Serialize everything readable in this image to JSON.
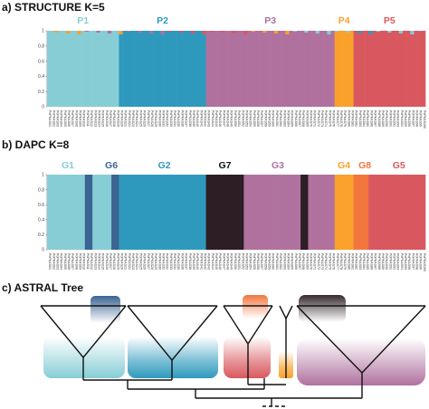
{
  "panels": {
    "a_title": "a) STRUCTURE K=5",
    "b_title": "b) DAPC K=8",
    "c_title": "c) ASTRAL Tree"
  },
  "colors": {
    "P1": "#86cdd5",
    "P2": "#2f99bd",
    "P3": "#b0719e",
    "P4": "#f9a12b",
    "P5": "#d9585f",
    "G1": "#86cdd5",
    "G6": "#3a6492",
    "G2": "#2f99bd",
    "G7": "#2c1e24",
    "G3": "#b0719e",
    "G4": "#f9a12b",
    "G8": "#f2763e",
    "G5": "#d9585f",
    "tree_line": "#111111",
    "tree_link": "#777777"
  },
  "chart_data": [
    {
      "type": "bar",
      "stacked": true,
      "title": "a) STRUCTURE K=5",
      "ylim": [
        0,
        1
      ],
      "yticks": [
        "0",
        "0.2",
        "0.4",
        "0.6",
        "0.8",
        "1"
      ],
      "clusters": [
        {
          "name": "P1",
          "color": "#86cdd5",
          "start": 0,
          "end": 19
        },
        {
          "name": "P2",
          "color": "#2f99bd",
          "start": 19,
          "end": 42
        },
        {
          "name": "P3",
          "color": "#b0719e",
          "start": 42,
          "end": 76
        },
        {
          "name": "P4",
          "color": "#f9a12b",
          "start": 76,
          "end": 81
        },
        {
          "name": "P5",
          "color": "#d9585f",
          "start": 81,
          "end": 100
        }
      ],
      "n_individuals": 100,
      "membership_note": "Each individual shows near-complete membership in its cluster with small admixture slivers at the top of some columns."
    },
    {
      "type": "bar",
      "stacked": true,
      "title": "b) DAPC K=8",
      "ylim": [
        0,
        1
      ],
      "yticks": [
        "0",
        "0.2",
        "0.4",
        "0.6",
        "0.8",
        "1"
      ],
      "segments": [
        {
          "group": "G1",
          "color": "#86cdd5",
          "start": 0,
          "end": 10
        },
        {
          "group": "G6",
          "color": "#3a6492",
          "start": 10,
          "end": 12
        },
        {
          "group": "G1",
          "color": "#86cdd5",
          "start": 12,
          "end": 17
        },
        {
          "group": "G6",
          "color": "#3a6492",
          "start": 17,
          "end": 19
        },
        {
          "group": "G2",
          "color": "#2f99bd",
          "start": 19,
          "end": 42
        },
        {
          "group": "G7",
          "color": "#2c1e24",
          "start": 42,
          "end": 52
        },
        {
          "group": "G3",
          "color": "#b0719e",
          "start": 52,
          "end": 67
        },
        {
          "group": "G7",
          "color": "#2c1e24",
          "start": 67,
          "end": 69
        },
        {
          "group": "G3",
          "color": "#b0719e",
          "start": 69,
          "end": 76
        },
        {
          "group": "G4",
          "color": "#f9a12b",
          "start": 76,
          "end": 81
        },
        {
          "group": "G8",
          "color": "#f2763e",
          "start": 81,
          "end": 85
        },
        {
          "group": "G5",
          "color": "#d9585f",
          "start": 85,
          "end": 100
        }
      ],
      "group_labels": [
        {
          "name": "G1",
          "color": "#86cdd5",
          "at": 5.5
        },
        {
          "name": "G6",
          "color": "#3a6492",
          "at": 17
        },
        {
          "name": "G2",
          "color": "#2f99bd",
          "at": 31
        },
        {
          "name": "G7",
          "color": "#111111",
          "at": 47
        },
        {
          "name": "G3",
          "color": "#b0719e",
          "at": 61
        },
        {
          "name": "G4",
          "color": "#f9a12b",
          "at": 78.5
        },
        {
          "name": "G8",
          "color": "#f2763e",
          "at": 84
        },
        {
          "name": "G5",
          "color": "#d9585f",
          "at": 93
        }
      ],
      "n_individuals": 100
    },
    {
      "type": "tree",
      "title": "c) ASTRAL Tree",
      "clades": [
        {
          "group": "G1+G6",
          "color": "#86cdd5",
          "inset": "#3a6492"
        },
        {
          "group": "G2",
          "color": "#2f99bd"
        },
        {
          "group": "G5+G8",
          "color": "#d9585f",
          "inset": "#f2763e"
        },
        {
          "group": "G4",
          "color": "#f9a12b"
        },
        {
          "group": "G3+G7",
          "color": "#b0719e",
          "inset": "#2c1e24"
        }
      ]
    }
  ]
}
